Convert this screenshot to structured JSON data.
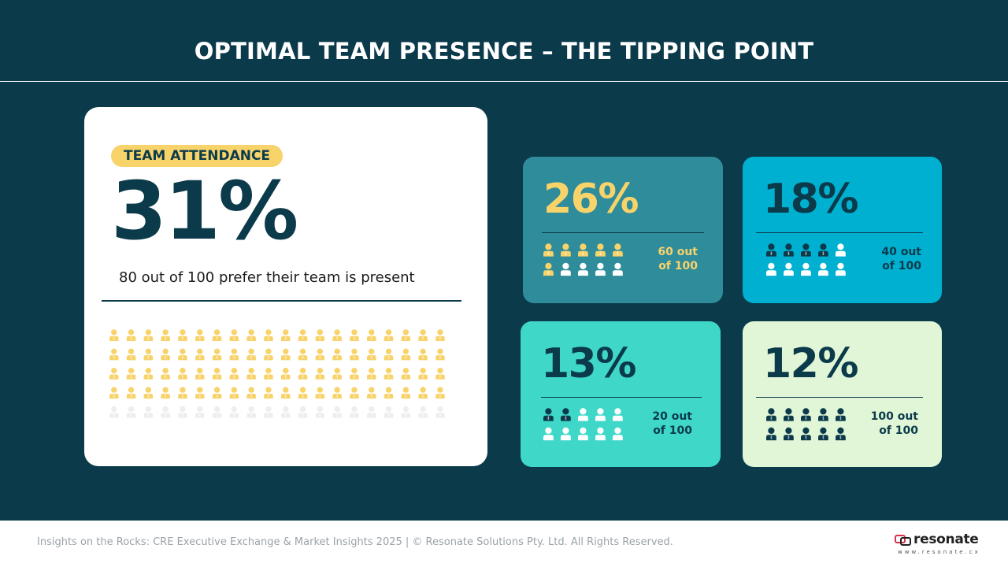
{
  "title": "OPTIMAL TEAM PRESENCE – THE TIPPING POINT",
  "main": {
    "badge": "TEAM ATTENDANCE",
    "percent": "31%",
    "subtitle": "80 out of 100 prefer their team is present",
    "highlighted": 80,
    "total": 100
  },
  "cards": [
    {
      "percent": "26%",
      "note_line1": "60 out",
      "note_line2": "of 100",
      "highlighted": 6,
      "total": 10
    },
    {
      "percent": "18%",
      "note_line1": "40 out",
      "note_line2": "of 100",
      "highlighted": 4,
      "total": 10
    },
    {
      "percent": "13%",
      "note_line1": "20 out",
      "note_line2": "of 100",
      "highlighted": 2,
      "total": 10
    },
    {
      "percent": "12%",
      "note_line1": "100 out",
      "note_line2": "of 100",
      "highlighted": 10,
      "total": 10
    }
  ],
  "colors": {
    "background": "#0b3a4b",
    "yellow": "#f8d36a",
    "card1": "#2f8c9b",
    "card2": "#00b0d0",
    "card3": "#3fd8c8",
    "card4": "#e0f6d6"
  },
  "footer": {
    "text": "Insights on the Rocks: CRE Executive Exchange & Market Insights 2025 | © Resonate Solutions Pty. Ltd. All Rights Reserved.",
    "logo_word": "resonate",
    "logo_url": "www.resonate.cx"
  }
}
